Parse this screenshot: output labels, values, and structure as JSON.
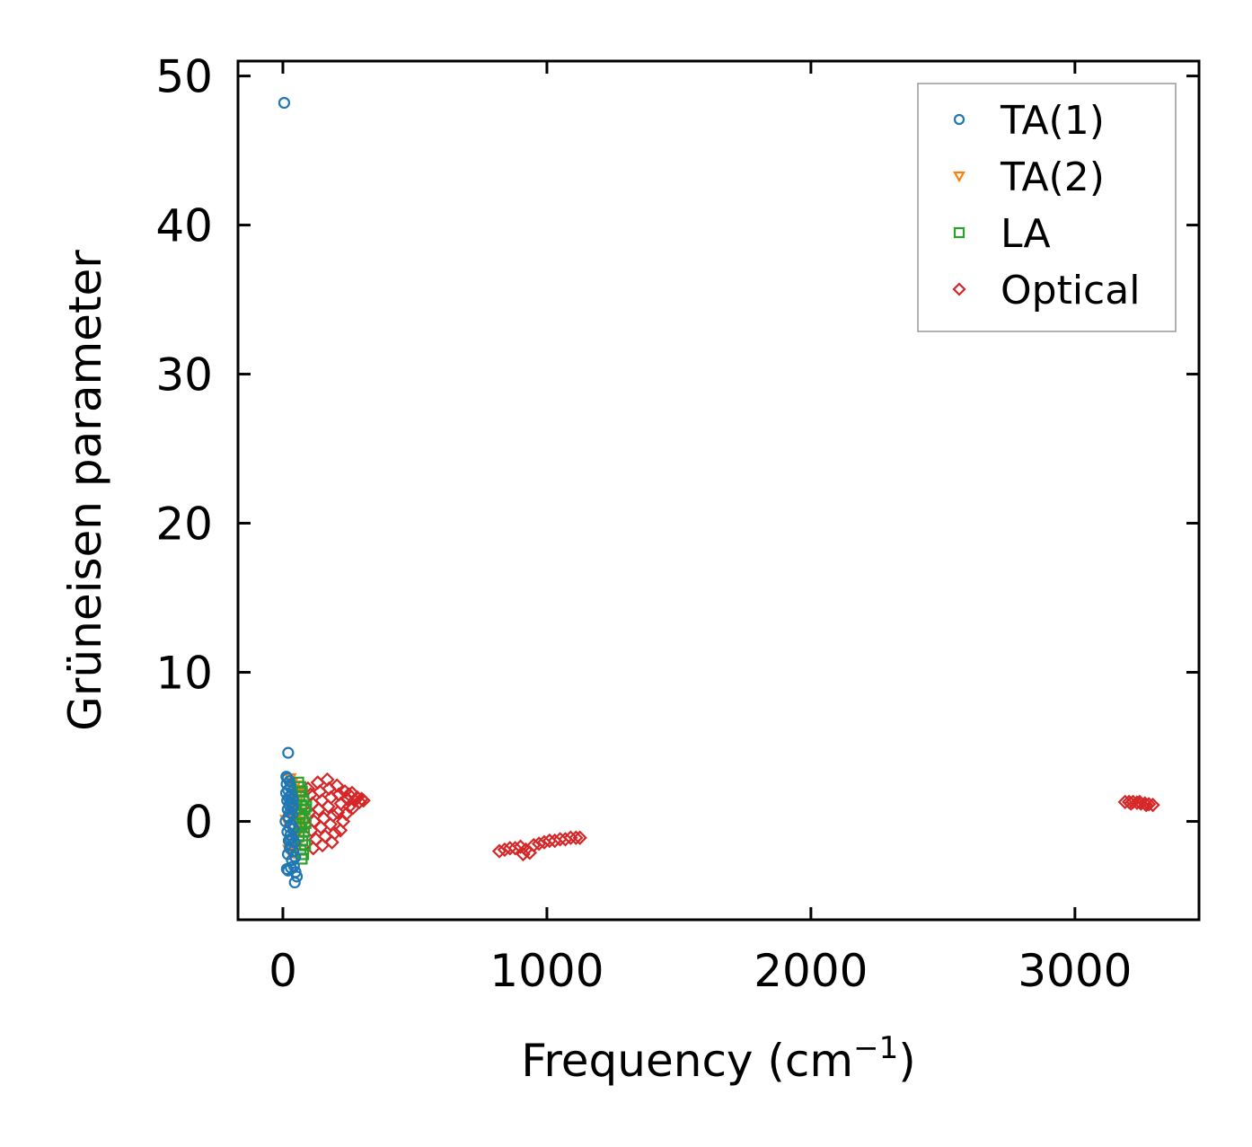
{
  "chart_data": {
    "type": "scatter",
    "title": "",
    "xlabel": "Frequency (cm",
    "xlabel_sup": "−1",
    "xlabel_tail": ")",
    "ylabel": "Grüneisen parameter",
    "xlim": [
      -170,
      3470
    ],
    "ylim": [
      -6.6,
      51.0
    ],
    "x_ticks": [
      0,
      1000,
      2000,
      3000
    ],
    "x_tick_labels": [
      "0",
      "1000",
      "2000",
      "3000"
    ],
    "y_ticks": [
      0,
      10,
      20,
      30,
      40,
      50
    ],
    "y_tick_labels": [
      "0",
      "10",
      "20",
      "30",
      "40",
      "50"
    ],
    "grid": false,
    "legend_position": "top-right",
    "series": [
      {
        "name": "TA(1)",
        "marker": "circle",
        "color": "#1f77b4",
        "points": [
          [
            5,
            48.2
          ],
          [
            20,
            4.6
          ],
          [
            13,
            3.0
          ],
          [
            18,
            2.9
          ],
          [
            25,
            2.7
          ],
          [
            14,
            2.5
          ],
          [
            28,
            2.3
          ],
          [
            20,
            2.1
          ],
          [
            12,
            1.9
          ],
          [
            33,
            1.8
          ],
          [
            22,
            1.6
          ],
          [
            16,
            1.4
          ],
          [
            30,
            1.3
          ],
          [
            24,
            1.1
          ],
          [
            38,
            1.0
          ],
          [
            18,
            0.8
          ],
          [
            27,
            0.6
          ],
          [
            35,
            0.5
          ],
          [
            21,
            0.3
          ],
          [
            10,
            0.0
          ],
          [
            31,
            -0.2
          ],
          [
            25,
            -0.4
          ],
          [
            40,
            -0.5
          ],
          [
            17,
            -0.7
          ],
          [
            29,
            -0.9
          ],
          [
            36,
            -1.1
          ],
          [
            22,
            -1.3
          ],
          [
            44,
            -1.4
          ],
          [
            32,
            -1.6
          ],
          [
            26,
            -1.8
          ],
          [
            39,
            -2.0
          ],
          [
            19,
            -2.2
          ],
          [
            47,
            -2.4
          ],
          [
            34,
            -2.6
          ],
          [
            15,
            -3.2
          ],
          [
            42,
            -3.0
          ],
          [
            30,
            -3.1
          ],
          [
            48,
            -3.4
          ],
          [
            20,
            -3.3
          ],
          [
            53,
            -3.7
          ],
          [
            45,
            -4.1
          ],
          [
            23,
            0.2
          ],
          [
            33,
            0.9
          ],
          [
            28,
            -1.2
          ],
          [
            37,
            1.5
          ]
        ]
      },
      {
        "name": "TA(2)",
        "marker": "triangle-down",
        "color": "#ff7f0e",
        "points": [
          [
            12,
            0.1
          ],
          [
            28,
            2.9
          ],
          [
            35,
            2.6
          ],
          [
            46,
            2.4
          ],
          [
            52,
            2.1
          ],
          [
            40,
            1.8
          ],
          [
            58,
            1.5
          ],
          [
            33,
            1.2
          ],
          [
            50,
            0.9
          ],
          [
            62,
            0.6
          ],
          [
            44,
            0.3
          ],
          [
            56,
            0.0
          ],
          [
            38,
            -0.4
          ],
          [
            60,
            -0.7
          ],
          [
            48,
            -1.0
          ],
          [
            30,
            -1.3
          ],
          [
            55,
            -1.6
          ],
          [
            22,
            -1.9
          ],
          [
            42,
            -2.1
          ],
          [
            64,
            -0.2
          ],
          [
            36,
            2.2
          ],
          [
            53,
            1.0
          ],
          [
            47,
            -0.8
          ],
          [
            59,
            1.9
          ]
        ]
      },
      {
        "name": "LA",
        "marker": "square",
        "color": "#2ca02c",
        "points": [
          [
            58,
            2.6
          ],
          [
            66,
            2.3
          ],
          [
            72,
            2.0
          ],
          [
            62,
            1.7
          ],
          [
            78,
            1.4
          ],
          [
            69,
            1.1
          ],
          [
            82,
            0.8
          ],
          [
            64,
            0.5
          ],
          [
            75,
            0.2
          ],
          [
            86,
            -0.1
          ],
          [
            70,
            -0.4
          ],
          [
            80,
            -0.7
          ],
          [
            60,
            -1.0
          ],
          [
            74,
            -1.3
          ],
          [
            84,
            -1.6
          ],
          [
            67,
            -1.9
          ],
          [
            77,
            -2.2
          ],
          [
            71,
            -2.5
          ],
          [
            88,
            1.0
          ],
          [
            63,
            -0.2
          ]
        ]
      },
      {
        "name": "Optical",
        "marker": "diamond",
        "color": "#d62728",
        "points": [
          [
            95,
            2.2
          ],
          [
            105,
            1.8
          ],
          [
            112,
            1.2
          ],
          [
            100,
            0.6
          ],
          [
            118,
            0.0
          ],
          [
            108,
            -0.6
          ],
          [
            125,
            -1.2
          ],
          [
            115,
            -1.8
          ],
          [
            132,
            2.6
          ],
          [
            140,
            2.0
          ],
          [
            148,
            1.4
          ],
          [
            136,
            0.8
          ],
          [
            155,
            0.2
          ],
          [
            144,
            -0.4
          ],
          [
            160,
            -1.0
          ],
          [
            150,
            -1.6
          ],
          [
            168,
            2.8
          ],
          [
            175,
            2.2
          ],
          [
            182,
            1.6
          ],
          [
            172,
            1.0
          ],
          [
            190,
            0.4
          ],
          [
            180,
            -0.2
          ],
          [
            196,
            -0.8
          ],
          [
            186,
            -1.4
          ],
          [
            205,
            2.4
          ],
          [
            212,
            1.8
          ],
          [
            220,
            1.2
          ],
          [
            208,
            0.6
          ],
          [
            228,
            0.0
          ],
          [
            218,
            -0.6
          ],
          [
            235,
            2.0
          ],
          [
            244,
            1.5
          ],
          [
            252,
            1.0
          ],
          [
            240,
            0.5
          ],
          [
            262,
            1.9
          ],
          [
            272,
            1.4
          ],
          [
            282,
            1.6
          ],
          [
            290,
            1.3
          ],
          [
            298,
            1.5
          ],
          [
            305,
            1.4
          ],
          [
            265,
            0.9
          ],
          [
            250,
            1.8
          ],
          [
            820,
            -2.0
          ],
          [
            840,
            -1.9
          ],
          [
            860,
            -1.8
          ],
          [
            880,
            -1.8
          ],
          [
            900,
            -1.7
          ],
          [
            920,
            -1.9
          ],
          [
            935,
            -2.1
          ],
          [
            950,
            -1.6
          ],
          [
            970,
            -1.5
          ],
          [
            990,
            -1.4
          ],
          [
            1010,
            -1.3
          ],
          [
            1030,
            -1.3
          ],
          [
            1050,
            -1.2
          ],
          [
            1070,
            -1.2
          ],
          [
            1090,
            -1.1
          ],
          [
            1110,
            -1.1
          ],
          [
            1125,
            -1.1
          ],
          [
            910,
            -2.2
          ],
          [
            3190,
            1.3
          ],
          [
            3205,
            1.3
          ],
          [
            3220,
            1.3
          ],
          [
            3235,
            1.25
          ],
          [
            3250,
            1.2
          ],
          [
            3265,
            1.2
          ],
          [
            3280,
            1.15
          ],
          [
            3295,
            1.1
          ],
          [
            3212,
            1.2
          ],
          [
            3245,
            1.3
          ],
          [
            3270,
            1.1
          ]
        ]
      }
    ]
  }
}
